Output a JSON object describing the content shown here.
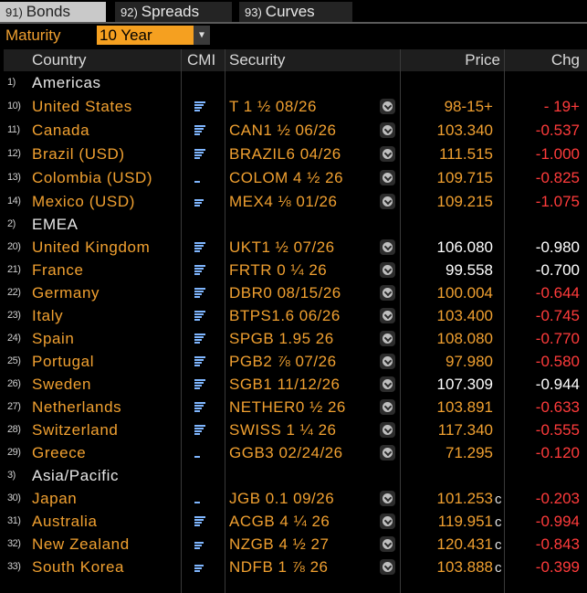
{
  "tabs": [
    {
      "num": "91)",
      "label": "Bonds",
      "active": true
    },
    {
      "num": "92)",
      "label": "Spreads",
      "active": false
    },
    {
      "num": "93)",
      "label": "Curves",
      "active": false
    }
  ],
  "maturity": {
    "label": "Maturity",
    "value": "10 Year"
  },
  "columns": {
    "country": "Country",
    "cmi": "CMI",
    "security": "Security",
    "price": "Price",
    "chg": "Chg"
  },
  "colors": {
    "accent": "#f0a030",
    "negative": "#ff3b3b",
    "cmi": "#7fb6ff"
  },
  "rows": [
    {
      "type": "region",
      "idx": "1)",
      "label": "Americas"
    },
    {
      "type": "bond",
      "idx": "10)",
      "country": "United States",
      "security": "T 1 ½ 08/26",
      "price": "98-15+",
      "price_white": false,
      "flag": "",
      "chg": "- 19+",
      "chg_white": false,
      "cmi_level": 4
    },
    {
      "type": "bond",
      "idx": "11)",
      "country": "Canada",
      "security": "CAN1 ½ 06/26",
      "price": "103.340",
      "price_white": false,
      "flag": "",
      "chg": "-0.537",
      "chg_white": false,
      "cmi_level": 4
    },
    {
      "type": "bond",
      "idx": "12)",
      "country": "Brazil (USD)",
      "security": "BRAZIL6 04/26",
      "price": "111.515",
      "price_white": false,
      "flag": "",
      "chg": "-1.000",
      "chg_white": false,
      "cmi_level": 4
    },
    {
      "type": "bond",
      "idx": "13)",
      "country": "Colombia (USD)",
      "security": "COLOM 4 ½ 26",
      "price": "109.715",
      "price_white": false,
      "flag": "",
      "chg": "-0.825",
      "chg_white": false,
      "cmi_level": 1
    },
    {
      "type": "bond",
      "idx": "14)",
      "country": "Mexico (USD)",
      "security": "MEX4 ⅛ 01/26",
      "price": "109.215",
      "price_white": false,
      "flag": "",
      "chg": "-1.075",
      "chg_white": false,
      "cmi_level": 3
    },
    {
      "type": "region",
      "idx": "2)",
      "label": "EMEA"
    },
    {
      "type": "bond",
      "idx": "20)",
      "country": "United Kingdom",
      "security": "UKT1 ½ 07/26",
      "price": "106.080",
      "price_white": true,
      "flag": "",
      "chg": "-0.980",
      "chg_white": true,
      "cmi_level": 4
    },
    {
      "type": "bond",
      "idx": "21)",
      "country": "France",
      "security": "FRTR 0 ¼ 26",
      "price": "99.558",
      "price_white": true,
      "flag": "",
      "chg": "-0.700",
      "chg_white": true,
      "cmi_level": 4
    },
    {
      "type": "bond",
      "idx": "22)",
      "country": "Germany",
      "security": "DBR0 08/15/26",
      "price": "100.004",
      "price_white": false,
      "flag": "",
      "chg": "-0.644",
      "chg_white": false,
      "cmi_level": 4
    },
    {
      "type": "bond",
      "idx": "23)",
      "country": "Italy",
      "security": "BTPS1.6 06/26",
      "price": "103.400",
      "price_white": false,
      "flag": "",
      "chg": "-0.745",
      "chg_white": false,
      "cmi_level": 4
    },
    {
      "type": "bond",
      "idx": "24)",
      "country": "Spain",
      "security": "SPGB 1.95 26",
      "price": "108.080",
      "price_white": false,
      "flag": "",
      "chg": "-0.770",
      "chg_white": false,
      "cmi_level": 4
    },
    {
      "type": "bond",
      "idx": "25)",
      "country": "Portugal",
      "security": "PGB2 ⅞ 07/26",
      "price": "97.980",
      "price_white": false,
      "flag": "",
      "chg": "-0.580",
      "chg_white": false,
      "cmi_level": 4
    },
    {
      "type": "bond",
      "idx": "26)",
      "country": "Sweden",
      "security": "SGB1 11/12/26",
      "price": "107.309",
      "price_white": true,
      "flag": "",
      "chg": "-0.944",
      "chg_white": true,
      "cmi_level": 4
    },
    {
      "type": "bond",
      "idx": "27)",
      "country": "Netherlands",
      "security": "NETHER0 ½ 26",
      "price": "103.891",
      "price_white": false,
      "flag": "",
      "chg": "-0.633",
      "chg_white": false,
      "cmi_level": 4
    },
    {
      "type": "bond",
      "idx": "28)",
      "country": "Switzerland",
      "security": "SWISS 1 ¼ 26",
      "price": "117.340",
      "price_white": false,
      "flag": "",
      "chg": "-0.555",
      "chg_white": false,
      "cmi_level": 4
    },
    {
      "type": "bond",
      "idx": "29)",
      "country": "Greece",
      "security": "GGB3 02/24/26",
      "price": "71.295",
      "price_white": false,
      "flag": "",
      "chg": "-0.120",
      "chg_white": false,
      "cmi_level": 1
    },
    {
      "type": "region",
      "idx": "3)",
      "label": "Asia/Pacific"
    },
    {
      "type": "bond",
      "idx": "30)",
      "country": "Japan",
      "security": "JGB 0.1 09/26",
      "price": "101.253",
      "price_white": false,
      "flag": "c",
      "chg": "-0.203",
      "chg_white": false,
      "cmi_level": 1
    },
    {
      "type": "bond",
      "idx": "31)",
      "country": "Australia",
      "security": "ACGB 4 ¼ 26",
      "price": "119.951",
      "price_white": false,
      "flag": "c",
      "chg": "-0.994",
      "chg_white": false,
      "cmi_level": 4
    },
    {
      "type": "bond",
      "idx": "32)",
      "country": "New Zealand",
      "security": "NZGB 4 ½ 27",
      "price": "120.431",
      "price_white": false,
      "flag": "c",
      "chg": "-0.843",
      "chg_white": false,
      "cmi_level": 3
    },
    {
      "type": "bond",
      "idx": "33)",
      "country": "South Korea",
      "security": "NDFB 1 ⅞ 26",
      "price": "103.888",
      "price_white": false,
      "flag": "c",
      "chg": "-0.399",
      "chg_white": false,
      "cmi_level": 3
    }
  ]
}
